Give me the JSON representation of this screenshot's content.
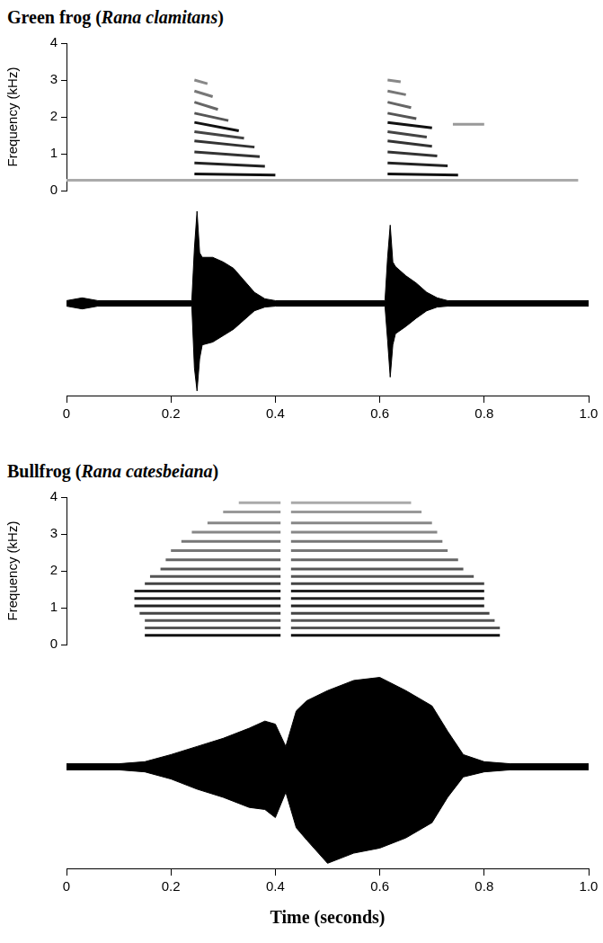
{
  "chart_data": [
    {
      "type": "spectrogram",
      "title": "Green frog (Rana clamitans)",
      "y_label": "Frequency (kHz)",
      "xlim": [
        0,
        1
      ],
      "ylim": [
        0,
        4
      ],
      "yticks": [
        0,
        1,
        2,
        3,
        4
      ],
      "grid": false,
      "tick_labels": "y",
      "harmonics": [
        {
          "x": [
            0.0,
            0.98
          ],
          "values": [
            0.28,
            0.28
          ],
          "color": "#aaaaaa"
        },
        {
          "x": [
            0.245,
            0.4
          ],
          "values": [
            0.45,
            0.42
          ],
          "color": "#111111"
        },
        {
          "x": [
            0.245,
            0.38
          ],
          "values": [
            0.75,
            0.66
          ],
          "color": "#222222"
        },
        {
          "x": [
            0.245,
            0.37
          ],
          "values": [
            1.05,
            0.92
          ],
          "color": "#333333"
        },
        {
          "x": [
            0.245,
            0.36
          ],
          "values": [
            1.35,
            1.18
          ],
          "color": "#333333"
        },
        {
          "x": [
            0.245,
            0.34
          ],
          "values": [
            1.6,
            1.42
          ],
          "color": "#444444"
        },
        {
          "x": [
            0.245,
            0.33
          ],
          "values": [
            1.85,
            1.62
          ],
          "color": "#111111"
        },
        {
          "x": [
            0.245,
            0.31
          ],
          "values": [
            2.1,
            1.9
          ],
          "color": "#555555"
        },
        {
          "x": [
            0.245,
            0.29
          ],
          "values": [
            2.4,
            2.2
          ],
          "color": "#666666"
        },
        {
          "x": [
            0.245,
            0.28
          ],
          "values": [
            2.7,
            2.55
          ],
          "color": "#777777"
        },
        {
          "x": [
            0.245,
            0.27
          ],
          "values": [
            3.0,
            2.9
          ],
          "color": "#888888"
        },
        {
          "x": [
            0.615,
            0.75
          ],
          "values": [
            0.45,
            0.42
          ],
          "color": "#111111"
        },
        {
          "x": [
            0.615,
            0.73
          ],
          "values": [
            0.75,
            0.67
          ],
          "color": "#222222"
        },
        {
          "x": [
            0.615,
            0.71
          ],
          "values": [
            1.05,
            0.94
          ],
          "color": "#333333"
        },
        {
          "x": [
            0.615,
            0.7
          ],
          "values": [
            1.35,
            1.2
          ],
          "color": "#333333"
        },
        {
          "x": [
            0.615,
            0.69
          ],
          "values": [
            1.6,
            1.45
          ],
          "color": "#444444"
        },
        {
          "x": [
            0.615,
            0.7
          ],
          "values": [
            1.85,
            1.7
          ],
          "color": "#111111"
        },
        {
          "x": [
            0.74,
            0.8
          ],
          "values": [
            1.8,
            1.8
          ],
          "color": "#999999"
        },
        {
          "x": [
            0.615,
            0.67
          ],
          "values": [
            2.1,
            1.95
          ],
          "color": "#555555"
        },
        {
          "x": [
            0.615,
            0.66
          ],
          "values": [
            2.4,
            2.25
          ],
          "color": "#666666"
        },
        {
          "x": [
            0.615,
            0.65
          ],
          "values": [
            2.7,
            2.6
          ],
          "color": "#777777"
        },
        {
          "x": [
            0.615,
            0.64
          ],
          "values": [
            3.0,
            2.95
          ],
          "color": "#888888"
        }
      ]
    },
    {
      "type": "waveform",
      "xlim": [
        0,
        1
      ],
      "xticks": [
        0,
        0.2,
        0.4,
        0.6,
        0.8,
        {
          "value": 1,
          "label": "1.0"
        }
      ],
      "ylim": [
        -1,
        1
      ],
      "grid": false,
      "tick_labels": "x",
      "color": "#000000",
      "x": [
        0,
        0.03,
        0.06,
        0.24,
        0.245,
        0.25,
        0.255,
        0.26,
        0.28,
        0.3,
        0.32,
        0.34,
        0.36,
        0.38,
        0.4,
        0.61,
        0.615,
        0.62,
        0.625,
        0.63,
        0.65,
        0.67,
        0.69,
        0.71,
        0.73,
        1.0
      ],
      "upper": [
        0.03,
        0.06,
        0.03,
        0.03,
        0.6,
        1.0,
        0.55,
        0.5,
        0.5,
        0.45,
        0.38,
        0.25,
        0.12,
        0.05,
        0.03,
        0.03,
        0.5,
        0.85,
        0.45,
        0.4,
        0.3,
        0.22,
        0.12,
        0.06,
        0.03,
        0.03
      ],
      "lower": [
        -0.03,
        -0.06,
        -0.03,
        -0.03,
        -0.7,
        -0.95,
        -0.6,
        -0.45,
        -0.42,
        -0.35,
        -0.28,
        -0.18,
        -0.08,
        -0.04,
        -0.03,
        -0.03,
        -0.4,
        -0.8,
        -0.45,
        -0.33,
        -0.25,
        -0.16,
        -0.08,
        -0.04,
        -0.03,
        -0.03
      ]
    },
    {
      "type": "spectrogram",
      "title": "Bullfrog (Rana catesbeiana)",
      "y_label": "Frequency (kHz)",
      "xlim": [
        0,
        1
      ],
      "ylim": [
        0,
        4
      ],
      "yticks": [
        0,
        1,
        2,
        3,
        4
      ],
      "grid": false,
      "tick_labels": "y",
      "harmonics": [
        {
          "x": [
            0.15,
            0.41
          ],
          "values": [
            0.25,
            0.25
          ],
          "color": "#111111"
        },
        {
          "x": [
            0.43,
            0.83
          ],
          "values": [
            0.25,
            0.25
          ],
          "color": "#111111"
        },
        {
          "x": [
            0.15,
            0.41
          ],
          "values": [
            0.45,
            0.45
          ],
          "color": "#555555"
        },
        {
          "x": [
            0.43,
            0.83
          ],
          "values": [
            0.45,
            0.45
          ],
          "color": "#555555"
        },
        {
          "x": [
            0.15,
            0.41
          ],
          "values": [
            0.65,
            0.65
          ],
          "color": "#555555"
        },
        {
          "x": [
            0.43,
            0.82
          ],
          "values": [
            0.65,
            0.65
          ],
          "color": "#555555"
        },
        {
          "x": [
            0.14,
            0.41
          ],
          "values": [
            0.85,
            0.85
          ],
          "color": "#444444"
        },
        {
          "x": [
            0.43,
            0.81
          ],
          "values": [
            0.85,
            0.85
          ],
          "color": "#444444"
        },
        {
          "x": [
            0.13,
            0.41
          ],
          "values": [
            1.05,
            1.05
          ],
          "color": "#222222"
        },
        {
          "x": [
            0.43,
            0.8
          ],
          "values": [
            1.05,
            1.05
          ],
          "color": "#222222"
        },
        {
          "x": [
            0.13,
            0.41
          ],
          "values": [
            1.25,
            1.25
          ],
          "color": "#222222"
        },
        {
          "x": [
            0.43,
            0.8
          ],
          "values": [
            1.25,
            1.25
          ],
          "color": "#222222"
        },
        {
          "x": [
            0.13,
            0.41
          ],
          "values": [
            1.45,
            1.45
          ],
          "color": "#222222"
        },
        {
          "x": [
            0.43,
            0.8
          ],
          "values": [
            1.45,
            1.45
          ],
          "color": "#222222"
        },
        {
          "x": [
            0.15,
            0.41
          ],
          "values": [
            1.65,
            1.65
          ],
          "color": "#444444"
        },
        {
          "x": [
            0.43,
            0.8
          ],
          "values": [
            1.65,
            1.65
          ],
          "color": "#444444"
        },
        {
          "x": [
            0.16,
            0.41
          ],
          "values": [
            1.85,
            1.85
          ],
          "color": "#555555"
        },
        {
          "x": [
            0.43,
            0.78
          ],
          "values": [
            1.85,
            1.85
          ],
          "color": "#555555"
        },
        {
          "x": [
            0.18,
            0.41
          ],
          "values": [
            2.05,
            2.05
          ],
          "color": "#555555"
        },
        {
          "x": [
            0.43,
            0.76
          ],
          "values": [
            2.05,
            2.05
          ],
          "color": "#555555"
        },
        {
          "x": [
            0.19,
            0.41
          ],
          "values": [
            2.3,
            2.3
          ],
          "color": "#666666"
        },
        {
          "x": [
            0.43,
            0.75
          ],
          "values": [
            2.3,
            2.3
          ],
          "color": "#666666"
        },
        {
          "x": [
            0.2,
            0.41
          ],
          "values": [
            2.55,
            2.55
          ],
          "color": "#777777"
        },
        {
          "x": [
            0.43,
            0.73
          ],
          "values": [
            2.55,
            2.55
          ],
          "color": "#777777"
        },
        {
          "x": [
            0.22,
            0.41
          ],
          "values": [
            2.8,
            2.8
          ],
          "color": "#777777"
        },
        {
          "x": [
            0.43,
            0.72
          ],
          "values": [
            2.8,
            2.8
          ],
          "color": "#777777"
        },
        {
          "x": [
            0.24,
            0.41
          ],
          "values": [
            3.05,
            3.05
          ],
          "color": "#888888"
        },
        {
          "x": [
            0.43,
            0.71
          ],
          "values": [
            3.05,
            3.05
          ],
          "color": "#888888"
        },
        {
          "x": [
            0.27,
            0.41
          ],
          "values": [
            3.3,
            3.3
          ],
          "color": "#888888"
        },
        {
          "x": [
            0.43,
            0.7
          ],
          "values": [
            3.3,
            3.3
          ],
          "color": "#888888"
        },
        {
          "x": [
            0.3,
            0.41
          ],
          "values": [
            3.6,
            3.6
          ],
          "color": "#999999"
        },
        {
          "x": [
            0.43,
            0.68
          ],
          "values": [
            3.6,
            3.6
          ],
          "color": "#999999"
        },
        {
          "x": [
            0.33,
            0.41
          ],
          "values": [
            3.85,
            3.85
          ],
          "color": "#aaaaaa"
        },
        {
          "x": [
            0.43,
            0.66
          ],
          "values": [
            3.85,
            3.85
          ],
          "color": "#aaaaaa"
        }
      ]
    },
    {
      "type": "waveform",
      "x_label": "Time (seconds)",
      "xlim": [
        0,
        1
      ],
      "xticks": [
        0,
        0.2,
        0.4,
        0.6,
        0.8,
        {
          "value": 1,
          "label": "1.0"
        }
      ],
      "ylim": [
        -1,
        1
      ],
      "grid": false,
      "tick_labels": "x",
      "color": "#000000",
      "x": [
        0,
        0.1,
        0.15,
        0.2,
        0.25,
        0.3,
        0.35,
        0.38,
        0.4,
        0.42,
        0.44,
        0.46,
        0.5,
        0.55,
        0.6,
        0.65,
        0.7,
        0.73,
        0.76,
        0.8,
        0.85,
        1.0
      ],
      "upper": [
        0.03,
        0.03,
        0.05,
        0.12,
        0.2,
        0.28,
        0.38,
        0.45,
        0.42,
        0.2,
        0.55,
        0.65,
        0.75,
        0.85,
        0.88,
        0.75,
        0.6,
        0.35,
        0.12,
        0.05,
        0.03,
        0.03
      ],
      "lower": [
        -0.03,
        -0.03,
        -0.05,
        -0.12,
        -0.22,
        -0.3,
        -0.4,
        -0.42,
        -0.5,
        -0.25,
        -0.6,
        -0.72,
        -0.95,
        -0.85,
        -0.8,
        -0.7,
        -0.55,
        -0.3,
        -0.1,
        -0.05,
        -0.03,
        -0.03
      ]
    }
  ]
}
